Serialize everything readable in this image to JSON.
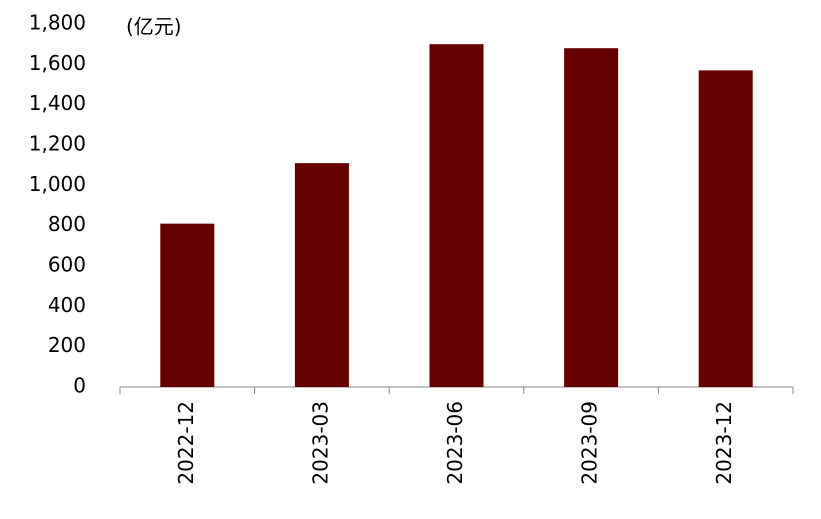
{
  "chart_data": {
    "type": "bar",
    "y_label": "(亿元)",
    "categories": [
      "2022-12",
      "2023-03",
      "2023-06",
      "2023-09",
      "2023-12"
    ],
    "values": [
      810,
      1110,
      1700,
      1680,
      1570
    ],
    "color": "#660000",
    "ylim": [
      0,
      1800
    ],
    "yticks": [
      0,
      200,
      400,
      600,
      800,
      {
        "value": 1000,
        "label": "1,000"
      },
      {
        "value": 1200,
        "label": "1,200"
      },
      {
        "value": 1400,
        "label": "1,400"
      },
      {
        "value": 1600,
        "label": "1,600"
      },
      {
        "value": 1800,
        "label": "1,800"
      }
    ],
    "grid": false
  }
}
